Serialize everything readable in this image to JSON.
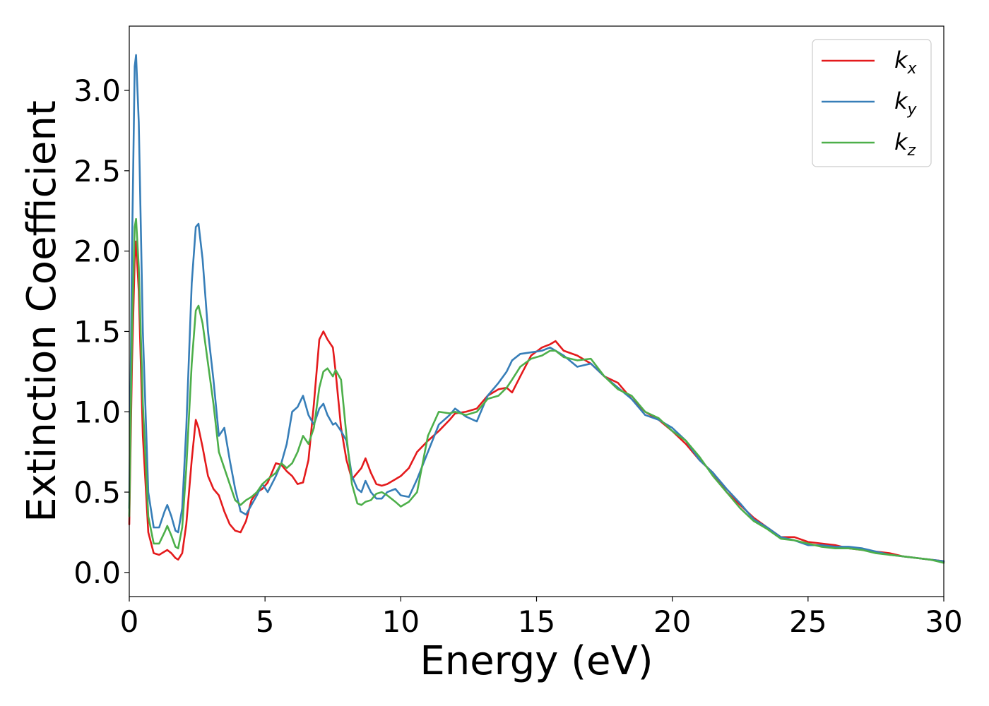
{
  "chart_data": {
    "type": "line",
    "xlabel": "Energy (eV)",
    "ylabel": "Extinction Coefficient",
    "xlim": [
      0,
      30
    ],
    "ylim": [
      -0.15,
      3.4
    ],
    "xticks": [
      0,
      5,
      10,
      15,
      20,
      25,
      30
    ],
    "xtick_labels": [
      "0",
      "5",
      "10",
      "15",
      "20",
      "25",
      "30"
    ],
    "yticks": [
      0.0,
      0.5,
      1.0,
      1.5,
      2.0,
      2.5,
      3.0
    ],
    "ytick_labels": [
      "0.0",
      "0.5",
      "1.0",
      "1.5",
      "2.0",
      "2.5",
      "3.0"
    ],
    "grid": false,
    "legend_position": "top-right",
    "series": [
      {
        "name": "k",
        "subscript": "x",
        "color": "#e41a1c",
        "x": [
          0,
          0.1,
          0.2,
          0.25,
          0.35,
          0.5,
          0.7,
          0.9,
          1.1,
          1.3,
          1.4,
          1.55,
          1.7,
          1.8,
          1.95,
          2.1,
          2.3,
          2.45,
          2.55,
          2.7,
          2.9,
          3.1,
          3.3,
          3.5,
          3.7,
          3.9,
          4.1,
          4.3,
          4.5,
          4.7,
          4.9,
          5.1,
          5.4,
          5.6,
          5.8,
          6.0,
          6.2,
          6.4,
          6.6,
          6.8,
          7.0,
          7.15,
          7.3,
          7.5,
          7.6,
          7.8,
          8.0,
          8.2,
          8.4,
          8.55,
          8.7,
          8.9,
          9.1,
          9.3,
          9.5,
          9.8,
          10.0,
          10.3,
          10.6,
          11.0,
          11.4,
          11.8,
          12.0,
          12.4,
          12.8,
          13.2,
          13.6,
          13.9,
          14.1,
          14.4,
          14.8,
          15.2,
          15.5,
          15.7,
          16.0,
          16.5,
          17.0,
          17.5,
          18.0,
          18.5,
          19.0,
          19.5,
          20.0,
          20.5,
          21.0,
          21.5,
          22.0,
          22.5,
          23.0,
          23.5,
          24.0,
          24.5,
          25.0,
          25.5,
          26.0,
          26.5,
          27.0,
          27.5,
          28.0,
          28.5,
          29.0,
          29.5,
          30.0
        ],
        "values": [
          0.3,
          1.3,
          1.95,
          2.06,
          1.75,
          0.85,
          0.25,
          0.12,
          0.11,
          0.13,
          0.14,
          0.12,
          0.09,
          0.08,
          0.12,
          0.3,
          0.7,
          0.95,
          0.9,
          0.78,
          0.6,
          0.52,
          0.48,
          0.38,
          0.3,
          0.26,
          0.25,
          0.32,
          0.45,
          0.5,
          0.52,
          0.56,
          0.68,
          0.67,
          0.63,
          0.6,
          0.55,
          0.56,
          0.7,
          1.05,
          1.45,
          1.5,
          1.45,
          1.4,
          1.25,
          0.9,
          0.7,
          0.58,
          0.62,
          0.65,
          0.71,
          0.62,
          0.55,
          0.54,
          0.55,
          0.58,
          0.6,
          0.65,
          0.75,
          0.82,
          0.88,
          0.95,
          0.99,
          1.0,
          1.02,
          1.1,
          1.14,
          1.15,
          1.12,
          1.22,
          1.35,
          1.4,
          1.42,
          1.44,
          1.38,
          1.35,
          1.3,
          1.22,
          1.18,
          1.08,
          1.0,
          0.95,
          0.88,
          0.8,
          0.7,
          0.62,
          0.5,
          0.42,
          0.34,
          0.28,
          0.22,
          0.22,
          0.19,
          0.18,
          0.17,
          0.15,
          0.14,
          0.13,
          0.12,
          0.1,
          0.09,
          0.08,
          0.07
        ]
      },
      {
        "name": "k",
        "subscript": "y",
        "color": "#377eb8",
        "x": [
          0,
          0.1,
          0.2,
          0.25,
          0.35,
          0.5,
          0.7,
          0.9,
          1.1,
          1.3,
          1.4,
          1.55,
          1.7,
          1.8,
          1.95,
          2.1,
          2.3,
          2.45,
          2.55,
          2.7,
          2.9,
          3.1,
          3.3,
          3.5,
          3.7,
          3.9,
          4.1,
          4.3,
          4.5,
          4.7,
          4.9,
          5.1,
          5.4,
          5.6,
          5.8,
          6.0,
          6.2,
          6.4,
          6.6,
          6.8,
          7.0,
          7.15,
          7.3,
          7.5,
          7.6,
          7.8,
          8.0,
          8.2,
          8.4,
          8.55,
          8.7,
          8.9,
          9.1,
          9.3,
          9.5,
          9.8,
          10.0,
          10.3,
          10.6,
          11.0,
          11.4,
          11.8,
          12.0,
          12.4,
          12.8,
          13.2,
          13.6,
          13.9,
          14.1,
          14.4,
          14.8,
          15.2,
          15.5,
          15.7,
          16.0,
          16.5,
          17.0,
          17.5,
          18.0,
          18.5,
          19.0,
          19.5,
          20.0,
          20.5,
          21.0,
          21.5,
          22.0,
          22.5,
          23.0,
          23.5,
          24.0,
          24.5,
          25.0,
          25.5,
          26.0,
          26.5,
          27.0,
          27.5,
          28.0,
          28.5,
          29.0,
          29.5,
          30.0
        ],
        "values": [
          0.4,
          2.0,
          3.15,
          3.22,
          2.8,
          1.5,
          0.5,
          0.28,
          0.28,
          0.38,
          0.42,
          0.35,
          0.26,
          0.25,
          0.4,
          0.9,
          1.8,
          2.15,
          2.17,
          1.95,
          1.5,
          1.2,
          0.85,
          0.9,
          0.7,
          0.52,
          0.38,
          0.36,
          0.42,
          0.48,
          0.55,
          0.5,
          0.6,
          0.68,
          0.8,
          1.0,
          1.03,
          1.1,
          0.98,
          0.92,
          1.02,
          1.05,
          0.98,
          0.92,
          0.93,
          0.88,
          0.82,
          0.6,
          0.52,
          0.5,
          0.57,
          0.5,
          0.46,
          0.46,
          0.5,
          0.52,
          0.48,
          0.47,
          0.58,
          0.75,
          0.92,
          0.98,
          1.02,
          0.97,
          0.94,
          1.1,
          1.18,
          1.25,
          1.32,
          1.36,
          1.37,
          1.38,
          1.4,
          1.38,
          1.35,
          1.28,
          1.3,
          1.22,
          1.15,
          1.08,
          0.98,
          0.95,
          0.9,
          0.82,
          0.7,
          0.62,
          0.52,
          0.43,
          0.33,
          0.28,
          0.22,
          0.2,
          0.17,
          0.17,
          0.16,
          0.16,
          0.15,
          0.13,
          0.11,
          0.1,
          0.09,
          0.08,
          0.07
        ]
      },
      {
        "name": "k",
        "subscript": "z",
        "color": "#4daf4a",
        "x": [
          0,
          0.1,
          0.2,
          0.25,
          0.35,
          0.5,
          0.7,
          0.9,
          1.1,
          1.3,
          1.4,
          1.55,
          1.7,
          1.8,
          1.95,
          2.1,
          2.3,
          2.45,
          2.55,
          2.7,
          2.9,
          3.1,
          3.3,
          3.5,
          3.7,
          3.9,
          4.1,
          4.3,
          4.5,
          4.7,
          4.9,
          5.1,
          5.4,
          5.6,
          5.8,
          6.0,
          6.2,
          6.4,
          6.6,
          6.8,
          7.0,
          7.15,
          7.3,
          7.5,
          7.6,
          7.8,
          8.0,
          8.2,
          8.4,
          8.55,
          8.7,
          8.9,
          9.1,
          9.3,
          9.5,
          9.8,
          10.0,
          10.3,
          10.6,
          11.0,
          11.4,
          11.8,
          12.0,
          12.4,
          12.8,
          13.2,
          13.6,
          13.9,
          14.1,
          14.4,
          14.8,
          15.2,
          15.5,
          15.7,
          16.0,
          16.5,
          17.0,
          17.5,
          18.0,
          18.5,
          19.0,
          19.5,
          20.0,
          20.5,
          21.0,
          21.5,
          22.0,
          22.5,
          23.0,
          23.5,
          24.0,
          24.5,
          25.0,
          25.5,
          26.0,
          26.5,
          27.0,
          27.5,
          28.0,
          28.5,
          29.0,
          29.5,
          30.0
        ],
        "values": [
          0.35,
          1.5,
          2.15,
          2.2,
          1.9,
          1.05,
          0.35,
          0.18,
          0.18,
          0.25,
          0.29,
          0.23,
          0.16,
          0.15,
          0.28,
          0.65,
          1.3,
          1.63,
          1.66,
          1.55,
          1.3,
          1.05,
          0.75,
          0.65,
          0.55,
          0.45,
          0.42,
          0.45,
          0.47,
          0.5,
          0.55,
          0.58,
          0.62,
          0.68,
          0.65,
          0.68,
          0.75,
          0.85,
          0.8,
          0.9,
          1.15,
          1.25,
          1.27,
          1.22,
          1.26,
          1.2,
          0.85,
          0.55,
          0.43,
          0.42,
          0.44,
          0.45,
          0.49,
          0.5,
          0.48,
          0.44,
          0.41,
          0.44,
          0.5,
          0.85,
          1.0,
          0.99,
          1.0,
          0.98,
          1.0,
          1.08,
          1.1,
          1.15,
          1.2,
          1.28,
          1.33,
          1.35,
          1.38,
          1.38,
          1.34,
          1.32,
          1.33,
          1.22,
          1.14,
          1.1,
          1.0,
          0.96,
          0.88,
          0.82,
          0.72,
          0.6,
          0.5,
          0.4,
          0.32,
          0.27,
          0.21,
          0.2,
          0.18,
          0.16,
          0.15,
          0.15,
          0.14,
          0.12,
          0.11,
          0.1,
          0.09,
          0.08,
          0.06
        ]
      }
    ]
  }
}
